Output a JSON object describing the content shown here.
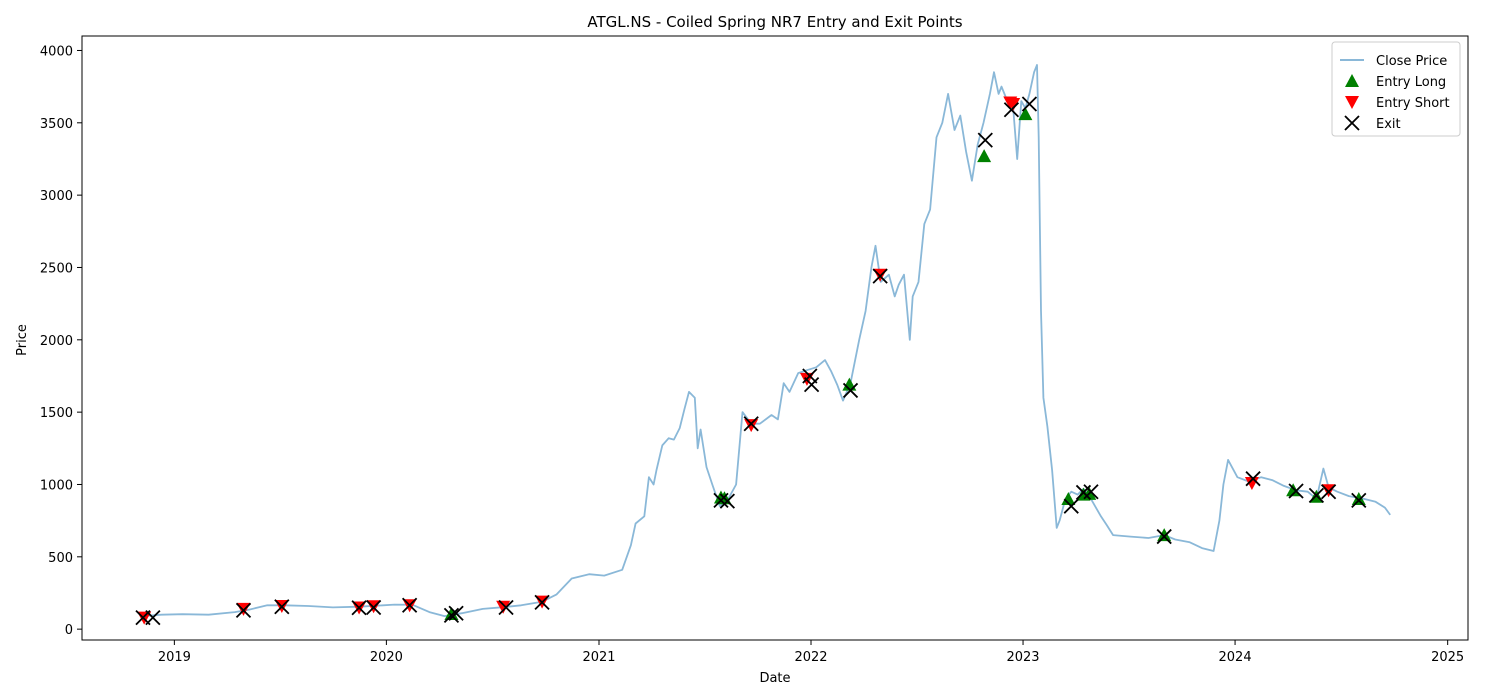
{
  "chart_data": {
    "type": "line",
    "title": "ATGL.NS - Coiled Spring NR7 Entry and Exit Points",
    "xlabel": "Date",
    "ylabel": "Price",
    "xlim": [
      "2018-07-26",
      "2025-02-05"
    ],
    "ylim": [
      -75,
      4100
    ],
    "x_ticks": [
      {
        "date": "2019-01-01",
        "label": "2019"
      },
      {
        "date": "2020-01-01",
        "label": "2020"
      },
      {
        "date": "2021-01-01",
        "label": "2021"
      },
      {
        "date": "2022-01-01",
        "label": "2022"
      },
      {
        "date": "2023-01-01",
        "label": "2023"
      },
      {
        "date": "2024-01-01",
        "label": "2024"
      },
      {
        "date": "2025-01-01",
        "label": "2025"
      }
    ],
    "y_ticks": [
      0,
      500,
      1000,
      1500,
      2000,
      2500,
      3000,
      3500,
      4000
    ],
    "grid": false,
    "legend_position": "top-right",
    "series": [
      {
        "name": "Close Price",
        "kind": "line",
        "color": "#8ab8d8",
        "points": [
          [
            "2018-11-08",
            90
          ],
          [
            "2018-12-10",
            100
          ],
          [
            "2019-01-15",
            103
          ],
          [
            "2019-03-01",
            100
          ],
          [
            "2019-04-15",
            118
          ],
          [
            "2019-05-10",
            135
          ],
          [
            "2019-06-10",
            165
          ],
          [
            "2019-07-10",
            165
          ],
          [
            "2019-08-20",
            160
          ],
          [
            "2019-10-01",
            150
          ],
          [
            "2019-11-15",
            155
          ],
          [
            "2019-12-15",
            162
          ],
          [
            "2020-01-15",
            170
          ],
          [
            "2020-02-15",
            168
          ],
          [
            "2020-03-15",
            118
          ],
          [
            "2020-04-10",
            90
          ],
          [
            "2020-05-10",
            110
          ],
          [
            "2020-06-15",
            140
          ],
          [
            "2020-07-20",
            152
          ],
          [
            "2020-08-20",
            165
          ],
          [
            "2020-09-25",
            190
          ],
          [
            "2020-10-20",
            240
          ],
          [
            "2020-11-15",
            350
          ],
          [
            "2020-12-15",
            380
          ],
          [
            "2021-01-10",
            370
          ],
          [
            "2021-02-10",
            410
          ],
          [
            "2021-02-25",
            580
          ],
          [
            "2021-03-05",
            730
          ],
          [
            "2021-03-20",
            780
          ],
          [
            "2021-03-28",
            1050
          ],
          [
            "2021-04-05",
            1000
          ],
          [
            "2021-04-10",
            1100
          ],
          [
            "2021-04-20",
            1270
          ],
          [
            "2021-05-01",
            1320
          ],
          [
            "2021-05-10",
            1310
          ],
          [
            "2021-05-20",
            1390
          ],
          [
            "2021-05-28",
            1520
          ],
          [
            "2021-06-05",
            1640
          ],
          [
            "2021-06-15",
            1600
          ],
          [
            "2021-06-20",
            1250
          ],
          [
            "2021-06-25",
            1380
          ],
          [
            "2021-07-05",
            1120
          ],
          [
            "2021-07-15",
            1000
          ],
          [
            "2021-07-28",
            850
          ],
          [
            "2021-08-10",
            890
          ],
          [
            "2021-08-25",
            1000
          ],
          [
            "2021-09-05",
            1500
          ],
          [
            "2021-09-20",
            1420
          ],
          [
            "2021-10-05",
            1420
          ],
          [
            "2021-10-25",
            1480
          ],
          [
            "2021-11-05",
            1450
          ],
          [
            "2021-11-15",
            1700
          ],
          [
            "2021-11-25",
            1640
          ],
          [
            "2021-12-10",
            1770
          ],
          [
            "2021-12-25",
            1790
          ],
          [
            "2022-01-10",
            1810
          ],
          [
            "2022-01-25",
            1860
          ],
          [
            "2022-02-05",
            1780
          ],
          [
            "2022-02-15",
            1690
          ],
          [
            "2022-02-25",
            1580
          ],
          [
            "2022-03-10",
            1700
          ],
          [
            "2022-03-25",
            2000
          ],
          [
            "2022-04-05",
            2200
          ],
          [
            "2022-04-15",
            2500
          ],
          [
            "2022-04-22",
            2650
          ],
          [
            "2022-05-01",
            2400
          ],
          [
            "2022-05-15",
            2450
          ],
          [
            "2022-05-25",
            2300
          ],
          [
            "2022-06-01",
            2380
          ],
          [
            "2022-06-10",
            2450
          ],
          [
            "2022-06-20",
            2000
          ],
          [
            "2022-06-25",
            2300
          ],
          [
            "2022-07-05",
            2400
          ],
          [
            "2022-07-15",
            2800
          ],
          [
            "2022-07-25",
            2900
          ],
          [
            "2022-08-05",
            3400
          ],
          [
            "2022-08-15",
            3500
          ],
          [
            "2022-08-25",
            3700
          ],
          [
            "2022-09-05",
            3450
          ],
          [
            "2022-09-15",
            3550
          ],
          [
            "2022-09-25",
            3300
          ],
          [
            "2022-10-05",
            3100
          ],
          [
            "2022-10-15",
            3350
          ],
          [
            "2022-10-25",
            3500
          ],
          [
            "2022-11-05",
            3700
          ],
          [
            "2022-11-12",
            3850
          ],
          [
            "2022-11-20",
            3700
          ],
          [
            "2022-11-25",
            3750
          ],
          [
            "2022-12-05",
            3650
          ],
          [
            "2022-12-15",
            3600
          ],
          [
            "2022-12-22",
            3250
          ],
          [
            "2022-12-29",
            3650
          ],
          [
            "2023-01-05",
            3600
          ],
          [
            "2023-01-12",
            3700
          ],
          [
            "2023-01-20",
            3850
          ],
          [
            "2023-01-25",
            3900
          ],
          [
            "2023-01-28",
            3400
          ],
          [
            "2023-02-01",
            2200
          ],
          [
            "2023-02-05",
            1600
          ],
          [
            "2023-02-12",
            1400
          ],
          [
            "2023-02-20",
            1100
          ],
          [
            "2023-02-28",
            700
          ],
          [
            "2023-03-05",
            750
          ],
          [
            "2023-03-15",
            900
          ],
          [
            "2023-03-25",
            950
          ],
          [
            "2023-04-05",
            930
          ],
          [
            "2023-04-15",
            970
          ],
          [
            "2023-04-25",
            920
          ],
          [
            "2023-05-05",
            850
          ],
          [
            "2023-05-15",
            780
          ],
          [
            "2023-05-25",
            720
          ],
          [
            "2023-06-05",
            650
          ],
          [
            "2023-07-05",
            640
          ],
          [
            "2023-08-05",
            630
          ],
          [
            "2023-09-01",
            650
          ],
          [
            "2023-09-20",
            620
          ],
          [
            "2023-10-15",
            600
          ],
          [
            "2023-11-05",
            560
          ],
          [
            "2023-11-25",
            540
          ],
          [
            "2023-12-05",
            750
          ],
          [
            "2023-12-12",
            1000
          ],
          [
            "2023-12-20",
            1170
          ],
          [
            "2024-01-05",
            1050
          ],
          [
            "2024-01-25",
            1020
          ],
          [
            "2024-02-15",
            1050
          ],
          [
            "2024-03-05",
            1030
          ],
          [
            "2024-03-25",
            990
          ],
          [
            "2024-04-15",
            960
          ],
          [
            "2024-05-05",
            950
          ],
          [
            "2024-05-20",
            900
          ],
          [
            "2024-06-01",
            1110
          ],
          [
            "2024-06-10",
            980
          ],
          [
            "2024-06-25",
            950
          ],
          [
            "2024-07-15",
            920
          ],
          [
            "2024-08-10",
            900
          ],
          [
            "2024-08-30",
            880
          ],
          [
            "2024-09-15",
            840
          ],
          [
            "2024-09-24",
            790
          ]
        ]
      },
      {
        "name": "Entry Long",
        "kind": "scatter",
        "marker": "triangle-up",
        "color": "#008000",
        "points": [
          [
            "2020-04-22",
            105
          ],
          [
            "2021-07-30",
            910
          ],
          [
            "2021-08-05",
            905
          ],
          [
            "2022-03-08",
            1690
          ],
          [
            "2022-10-26",
            3270
          ],
          [
            "2023-01-05",
            3560
          ],
          [
            "2023-03-20",
            900
          ],
          [
            "2023-04-15",
            930
          ],
          [
            "2023-04-25",
            935
          ],
          [
            "2023-09-01",
            650
          ],
          [
            "2024-04-10",
            960
          ],
          [
            "2024-05-20",
            915
          ],
          [
            "2024-08-01",
            900
          ]
        ]
      },
      {
        "name": "Entry Short",
        "kind": "scatter",
        "marker": "triangle-down",
        "color": "#ff0000",
        "points": [
          [
            "2018-11-10",
            80
          ],
          [
            "2019-04-30",
            140
          ],
          [
            "2019-07-05",
            160
          ],
          [
            "2019-11-15",
            150
          ],
          [
            "2019-12-10",
            158
          ],
          [
            "2020-02-10",
            165
          ],
          [
            "2020-07-20",
            155
          ],
          [
            "2020-09-25",
            190
          ],
          [
            "2021-09-20",
            1410
          ],
          [
            "2021-12-25",
            1730
          ],
          [
            "2022-04-30",
            2450
          ],
          [
            "2022-12-10",
            3640
          ],
          [
            "2022-12-15",
            3630
          ],
          [
            "2024-01-30",
            1010
          ],
          [
            "2024-06-10",
            960
          ]
        ]
      },
      {
        "name": "Exit",
        "kind": "scatter",
        "marker": "x",
        "color": "#000000",
        "points": [
          [
            "2018-11-08",
            80
          ],
          [
            "2018-11-25",
            80
          ],
          [
            "2019-04-30",
            130
          ],
          [
            "2019-07-05",
            155
          ],
          [
            "2019-11-15",
            148
          ],
          [
            "2019-12-10",
            150
          ],
          [
            "2020-02-10",
            165
          ],
          [
            "2020-04-22",
            95
          ],
          [
            "2020-04-30",
            110
          ],
          [
            "2020-07-25",
            150
          ],
          [
            "2020-09-25",
            185
          ],
          [
            "2021-07-30",
            890
          ],
          [
            "2021-08-10",
            885
          ],
          [
            "2021-09-20",
            1420
          ],
          [
            "2021-12-30",
            1750
          ],
          [
            "2022-01-02",
            1690
          ],
          [
            "2022-03-10",
            1650
          ],
          [
            "2022-04-30",
            2440
          ],
          [
            "2022-10-28",
            3380
          ],
          [
            "2022-12-12",
            3590
          ],
          [
            "2023-01-12",
            3630
          ],
          [
            "2023-03-25",
            850
          ],
          [
            "2023-04-15",
            945
          ],
          [
            "2023-04-28",
            950
          ],
          [
            "2023-09-01",
            640
          ],
          [
            "2024-02-01",
            1040
          ],
          [
            "2024-04-15",
            955
          ],
          [
            "2024-05-20",
            925
          ],
          [
            "2024-06-10",
            950
          ],
          [
            "2024-08-01",
            890
          ]
        ]
      }
    ]
  }
}
